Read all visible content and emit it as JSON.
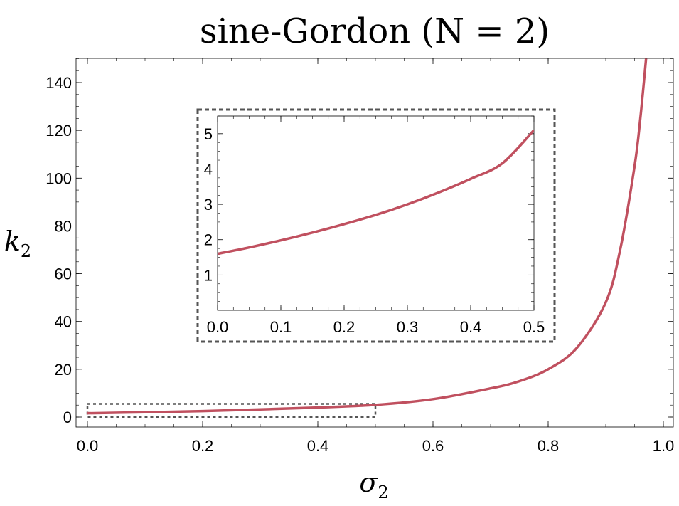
{
  "chart_data": [
    {
      "type": "line",
      "title": "sine-Gordon (N = 2)",
      "xlabel": "σ2",
      "ylabel": "k2",
      "xlim": [
        0,
        1
      ],
      "ylim": [
        -5,
        150
      ],
      "x_ticks": [
        "0.0",
        "0.2",
        "0.4",
        "0.6",
        "0.8",
        "1.0"
      ],
      "y_ticks": [
        "0",
        "20",
        "40",
        "60",
        "80",
        "100",
        "120",
        "140"
      ],
      "grid": false,
      "legend": "none",
      "series": [
        {
          "color": "#c0505f",
          "x": [
            0.0,
            0.1,
            0.2,
            0.3,
            0.4,
            0.5,
            0.6,
            0.7,
            0.75,
            0.8,
            0.85,
            0.9,
            0.925,
            0.95,
            0.96,
            0.97
          ],
          "y": [
            1.6,
            2.0,
            2.5,
            3.2,
            4.0,
            5.1,
            7.5,
            12.0,
            15.0,
            20.0,
            29.0,
            48.0,
            70.0,
            105.0,
            125.0,
            150.0
          ]
        }
      ],
      "inset_region": {
        "x": [
          0.0,
          0.5
        ],
        "y": [
          0.0,
          5.5
        ]
      }
    },
    {
      "type": "line",
      "title": "",
      "xlim": [
        0,
        0.5
      ],
      "ylim": [
        0,
        5.5
      ],
      "x_ticks": [
        "0.0",
        "0.1",
        "0.2",
        "0.3",
        "0.4",
        "0.5"
      ],
      "y_ticks": [
        "1",
        "2",
        "3",
        "4",
        "5"
      ],
      "grid": false,
      "series": [
        {
          "color": "#c0505f",
          "x": [
            0.0,
            0.05,
            0.1,
            0.15,
            0.2,
            0.25,
            0.3,
            0.35,
            0.4,
            0.45,
            0.5
          ],
          "y": [
            1.6,
            1.78,
            1.98,
            2.2,
            2.44,
            2.7,
            3.0,
            3.34,
            3.72,
            4.16,
            5.1
          ]
        }
      ]
    }
  ]
}
